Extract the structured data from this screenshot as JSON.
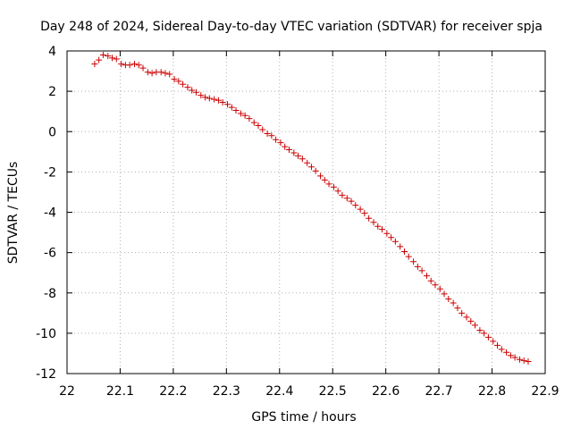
{
  "chart_data": {
    "type": "scatter",
    "title": "Day 248 of 2024, Sidereal Day-to-day VTEC variation (SDTVAR) for receiver spja",
    "xlabel": "GPS time / hours",
    "ylabel": "SDTVAR / TECUs",
    "xlim": [
      22.0,
      22.9
    ],
    "ylim": [
      -12,
      4
    ],
    "xticks": [
      22,
      22.1,
      22.2,
      22.3,
      22.4,
      22.5,
      22.6,
      22.7,
      22.8,
      22.9
    ],
    "xtick_labels": [
      "22",
      "22.1",
      "22.2",
      "22.3",
      "22.4",
      "22.5",
      "22.6",
      "22.7",
      "22.8",
      "22.9"
    ],
    "yticks": [
      4,
      2,
      0,
      -2,
      -4,
      -6,
      -8,
      -10,
      -12
    ],
    "ytick_labels": [
      "4",
      "2",
      "0",
      "-2",
      "-4",
      "-6",
      "-8",
      "-10",
      "-12"
    ],
    "grid": true,
    "marker": "plus",
    "color": "#cc0000",
    "series": [
      {
        "name": "SDTVAR",
        "x": [
          22.052,
          22.06,
          22.068,
          22.077,
          22.085,
          22.093,
          22.102,
          22.11,
          22.118,
          22.127,
          22.135,
          22.143,
          22.152,
          22.16,
          22.168,
          22.177,
          22.185,
          22.193,
          22.202,
          22.21,
          22.218,
          22.227,
          22.235,
          22.243,
          22.252,
          22.26,
          22.268,
          22.277,
          22.285,
          22.293,
          22.302,
          22.31,
          22.318,
          22.327,
          22.335,
          22.343,
          22.352,
          22.36,
          22.368,
          22.377,
          22.385,
          22.393,
          22.402,
          22.41,
          22.418,
          22.427,
          22.435,
          22.443,
          22.452,
          22.46,
          22.468,
          22.477,
          22.485,
          22.493,
          22.502,
          22.51,
          22.518,
          22.527,
          22.535,
          22.543,
          22.552,
          22.56,
          22.568,
          22.577,
          22.585,
          22.593,
          22.602,
          22.61,
          22.618,
          22.627,
          22.635,
          22.643,
          22.652,
          22.66,
          22.668,
          22.677,
          22.685,
          22.693,
          22.702,
          22.71,
          22.718,
          22.727,
          22.735,
          22.743,
          22.752,
          22.76,
          22.768,
          22.777,
          22.785,
          22.793,
          22.802,
          22.81,
          22.818,
          22.827,
          22.835,
          22.843,
          22.852,
          22.86,
          22.868
        ],
        "y": [
          3.35,
          3.55,
          3.8,
          3.75,
          3.65,
          3.6,
          3.35,
          3.3,
          3.3,
          3.35,
          3.3,
          3.15,
          2.95,
          2.9,
          2.95,
          2.95,
          2.9,
          2.85,
          2.6,
          2.5,
          2.35,
          2.2,
          2.05,
          1.95,
          1.8,
          1.7,
          1.65,
          1.6,
          1.55,
          1.45,
          1.35,
          1.2,
          1.05,
          0.9,
          0.8,
          0.65,
          0.45,
          0.3,
          0.1,
          -0.1,
          -0.2,
          -0.4,
          -0.55,
          -0.75,
          -0.9,
          -1.05,
          -1.2,
          -1.35,
          -1.55,
          -1.75,
          -1.95,
          -2.2,
          -2.4,
          -2.6,
          -2.75,
          -2.95,
          -3.15,
          -3.3,
          -3.45,
          -3.65,
          -3.85,
          -4.05,
          -4.3,
          -4.5,
          -4.7,
          -4.85,
          -5.05,
          -5.25,
          -5.45,
          -5.7,
          -5.95,
          -6.2,
          -6.45,
          -6.7,
          -6.9,
          -7.15,
          -7.4,
          -7.6,
          -7.8,
          -8.05,
          -8.3,
          -8.5,
          -8.75,
          -9.0,
          -9.2,
          -9.4,
          -9.6,
          -9.85,
          -10.0,
          -10.2,
          -10.4,
          -10.6,
          -10.8,
          -10.95,
          -11.1,
          -11.2,
          -11.3,
          -11.35,
          -11.4
        ]
      }
    ]
  }
}
